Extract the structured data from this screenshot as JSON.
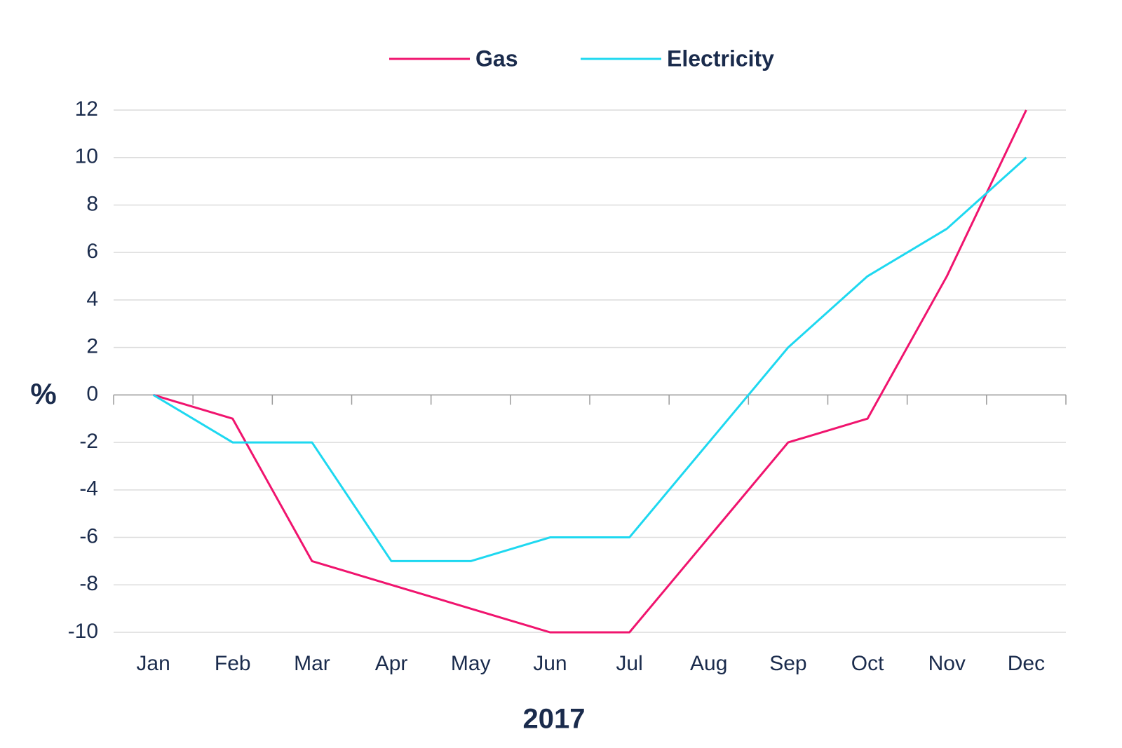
{
  "chart_data": {
    "type": "line",
    "x_label": "2017",
    "y_label": "%",
    "categories": [
      "Jan",
      "Feb",
      "Mar",
      "Apr",
      "May",
      "Jun",
      "Jul",
      "Aug",
      "Sep",
      "Oct",
      "Nov",
      "Dec"
    ],
    "series": [
      {
        "name": "Gas",
        "color": "#f0146e",
        "values": [
          0,
          -1,
          -7,
          -8,
          -9,
          -10,
          -10,
          -6,
          -2,
          -1,
          5,
          12
        ]
      },
      {
        "name": "Electricity",
        "color": "#1ed8f0",
        "values": [
          0,
          -2,
          -2,
          -7,
          -7,
          -6,
          -6,
          -2,
          2,
          5,
          7,
          10
        ]
      }
    ],
    "ylim": [
      -10,
      12
    ],
    "yticks": [
      -10,
      -8,
      -6,
      -4,
      -2,
      0,
      2,
      4,
      6,
      8,
      10,
      12
    ],
    "grid": true,
    "legend": "top"
  }
}
